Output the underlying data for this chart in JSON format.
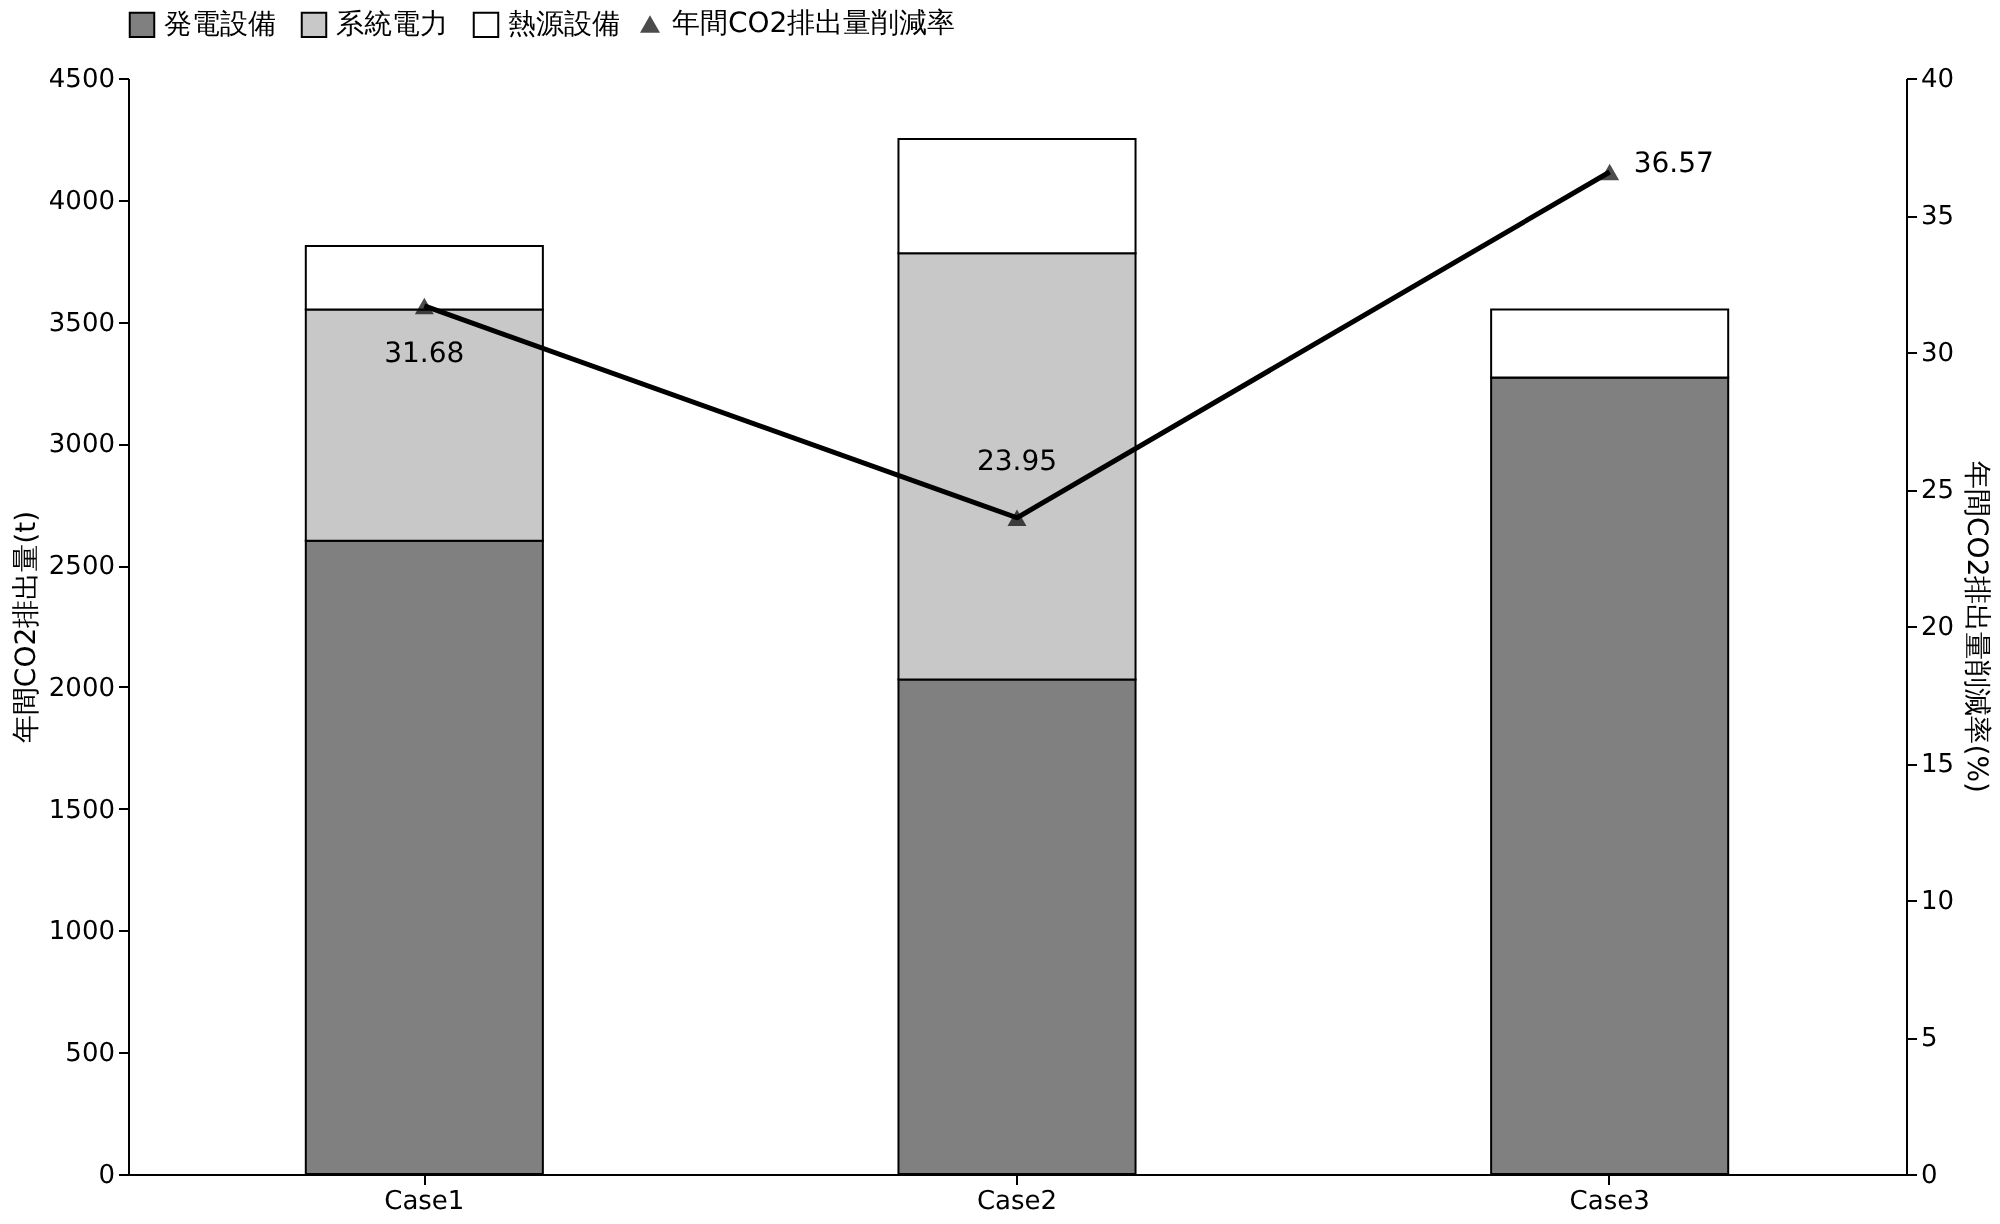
{
  "chart_data": {
    "type": "bar",
    "stacked": true,
    "legend": "top",
    "categories": [
      "Case1",
      "Case2",
      "Case3"
    ],
    "ylabel": "年間CO2排出量(t)",
    "y2label": "年間CO2排出量削減率(%)",
    "ylim": [
      0,
      4500
    ],
    "yticks": [
      0,
      500,
      1000,
      1500,
      2000,
      2500,
      3000,
      3500,
      4000,
      4500
    ],
    "y2lim": [
      0,
      40
    ],
    "y2ticks": [
      0,
      5,
      10,
      15,
      20,
      25,
      30,
      35,
      40
    ],
    "series": [
      {
        "name": "発電設備",
        "color": "#808080",
        "values": [
          2600,
          2030,
          3270
        ]
      },
      {
        "name": "系統電力",
        "color": "#c8c8c8",
        "values": [
          950,
          1750,
          0
        ]
      },
      {
        "name": "熱源設備",
        "color": "#ffffff",
        "values": [
          260,
          470,
          280
        ]
      },
      {
        "name": "年間CO2排出量削減率",
        "type": "line",
        "axis": "y2",
        "color": "#000000",
        "marker": "triangle",
        "values": [
          31.68,
          23.95,
          36.57
        ],
        "value_labels": [
          "31.68",
          "23.95",
          "36.57"
        ]
      }
    ]
  }
}
